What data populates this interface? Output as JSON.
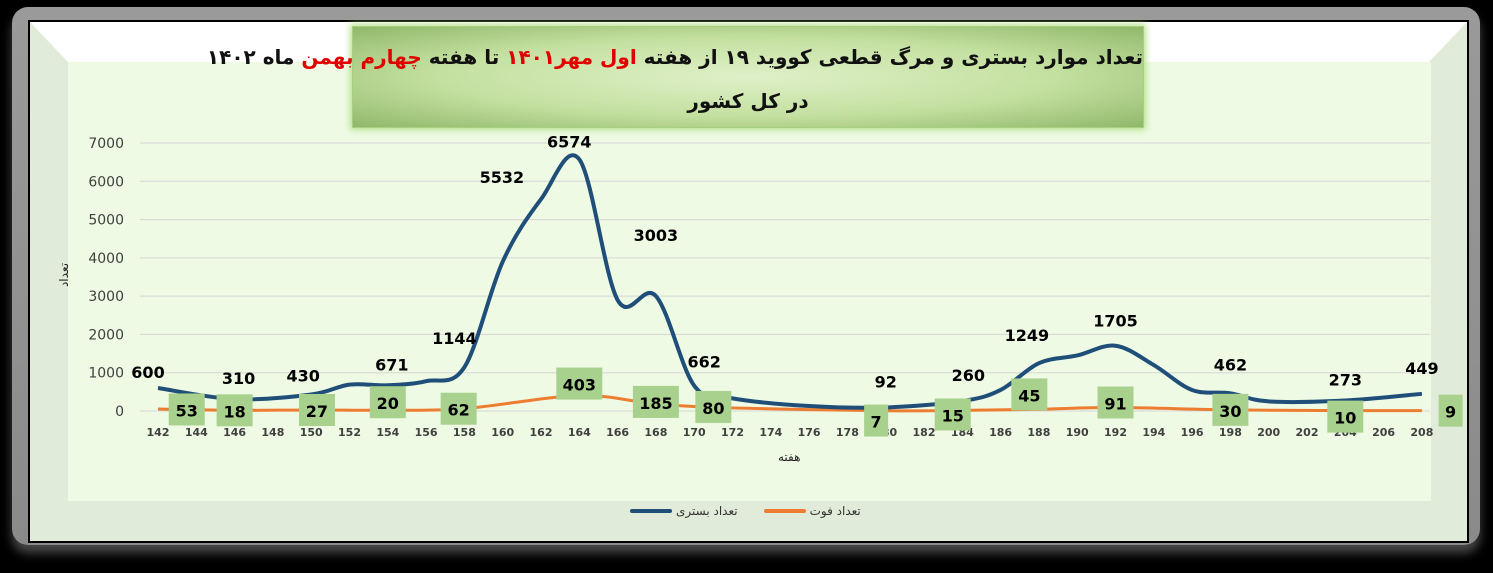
{
  "title": {
    "line1_part1": "تعداد موارد بستری و مرگ قطعی کووید ۱۹ از هفته ",
    "line1_red1": "اول مهر۱۴۰۱",
    "line1_part2": " تا هفته ",
    "line1_red2": "چهارم بهمن",
    "line1_part3": " ماه ۱۴۰۲",
    "line2": "در کل کشور"
  },
  "colors": {
    "hospitalized": "#1F4E79",
    "deaths": "#ED7D31",
    "death_label_bg": "#A9D18E",
    "plot_bg": "#EEFAE4",
    "title_red": "#E00000"
  },
  "chart_data": {
    "type": "line",
    "title": "تعداد موارد بستری و مرگ قطعی کووید ۱۹ از هفته اول مهر۱۴۰۱ تا هفته چهارم بهمن ماه ۱۴۰۲ در کل کشور",
    "xlabel": "هفته",
    "ylabel": "تعداد",
    "ylim": [
      0,
      7000
    ],
    "yticks": [
      0,
      1000,
      2000,
      3000,
      4000,
      5000,
      6000,
      7000
    ],
    "xticks": [
      142,
      144,
      146,
      148,
      150,
      152,
      154,
      156,
      158,
      160,
      162,
      164,
      166,
      168,
      170,
      172,
      174,
      176,
      178,
      180,
      182,
      184,
      186,
      188,
      190,
      192,
      194,
      196,
      198,
      200,
      202,
      204,
      206,
      208
    ],
    "grid": true,
    "legend_position": "bottom",
    "series": [
      {
        "name": "تعداد بستری",
        "color": "#1F4E79",
        "points": [
          [
            142,
            600
          ],
          [
            146,
            310
          ],
          [
            150,
            430
          ],
          [
            152,
            690
          ],
          [
            154,
            671
          ],
          [
            156,
            780
          ],
          [
            158,
            1144
          ],
          [
            160,
            3900
          ],
          [
            162,
            5532
          ],
          [
            164,
            6574
          ],
          [
            166,
            2900
          ],
          [
            168,
            3003
          ],
          [
            170,
            662
          ],
          [
            172,
            330
          ],
          [
            176,
            130
          ],
          [
            180,
            92
          ],
          [
            184,
            260
          ],
          [
            186,
            550
          ],
          [
            188,
            1249
          ],
          [
            190,
            1450
          ],
          [
            192,
            1705
          ],
          [
            194,
            1200
          ],
          [
            196,
            550
          ],
          [
            198,
            462
          ],
          [
            200,
            250
          ],
          [
            204,
            273
          ],
          [
            208,
            449
          ]
        ],
        "labels": [
          {
            "week": 142,
            "value": "600"
          },
          {
            "week": 146,
            "value": "310"
          },
          {
            "week": 150,
            "value": "430"
          },
          {
            "week": 154,
            "value": "671"
          },
          {
            "week": 158,
            "value": "1144"
          },
          {
            "week": 161,
            "value": "5532"
          },
          {
            "week": 164,
            "value": "6574"
          },
          {
            "week": 168,
            "value": "3003"
          },
          {
            "week": 170,
            "value": "662"
          },
          {
            "week": 180,
            "value": "92"
          },
          {
            "week": 184,
            "value": "260"
          },
          {
            "week": 188,
            "value": "1249"
          },
          {
            "week": 192,
            "value": "1705"
          },
          {
            "week": 198,
            "value": "462"
          },
          {
            "week": 204,
            "value": "273"
          },
          {
            "week": 208,
            "value": "449"
          }
        ]
      },
      {
        "name": "تعداد فوت",
        "color": "#ED7D31",
        "points": [
          [
            142,
            53
          ],
          [
            146,
            18
          ],
          [
            150,
            27
          ],
          [
            154,
            20
          ],
          [
            158,
            62
          ],
          [
            164,
            403
          ],
          [
            168,
            185
          ],
          [
            172,
            80
          ],
          [
            180,
            7
          ],
          [
            184,
            15
          ],
          [
            188,
            45
          ],
          [
            192,
            91
          ],
          [
            198,
            30
          ],
          [
            204,
            10
          ],
          [
            208,
            9
          ]
        ],
        "labels": [
          {
            "week": 143.5,
            "value": "53"
          },
          {
            "week": 146,
            "value": "18"
          },
          {
            "week": 150.3,
            "value": "27"
          },
          {
            "week": 154,
            "value": "20"
          },
          {
            "week": 157.7,
            "value": "62"
          },
          {
            "week": 164,
            "value": "403"
          },
          {
            "week": 168,
            "value": "185"
          },
          {
            "week": 171,
            "value": "80"
          },
          {
            "week": 179.5,
            "value": "7"
          },
          {
            "week": 183.5,
            "value": "15"
          },
          {
            "week": 187.5,
            "value": "45"
          },
          {
            "week": 192,
            "value": "91"
          },
          {
            "week": 198,
            "value": "30"
          },
          {
            "week": 204,
            "value": "10"
          },
          {
            "week": 209.5,
            "value": "9"
          }
        ]
      }
    ]
  },
  "legend": {
    "hospitalized": "تعداد بستری",
    "deaths": "تعداد فوت"
  },
  "axis": {
    "x_title": "هفته",
    "y_title": "تعداد"
  }
}
